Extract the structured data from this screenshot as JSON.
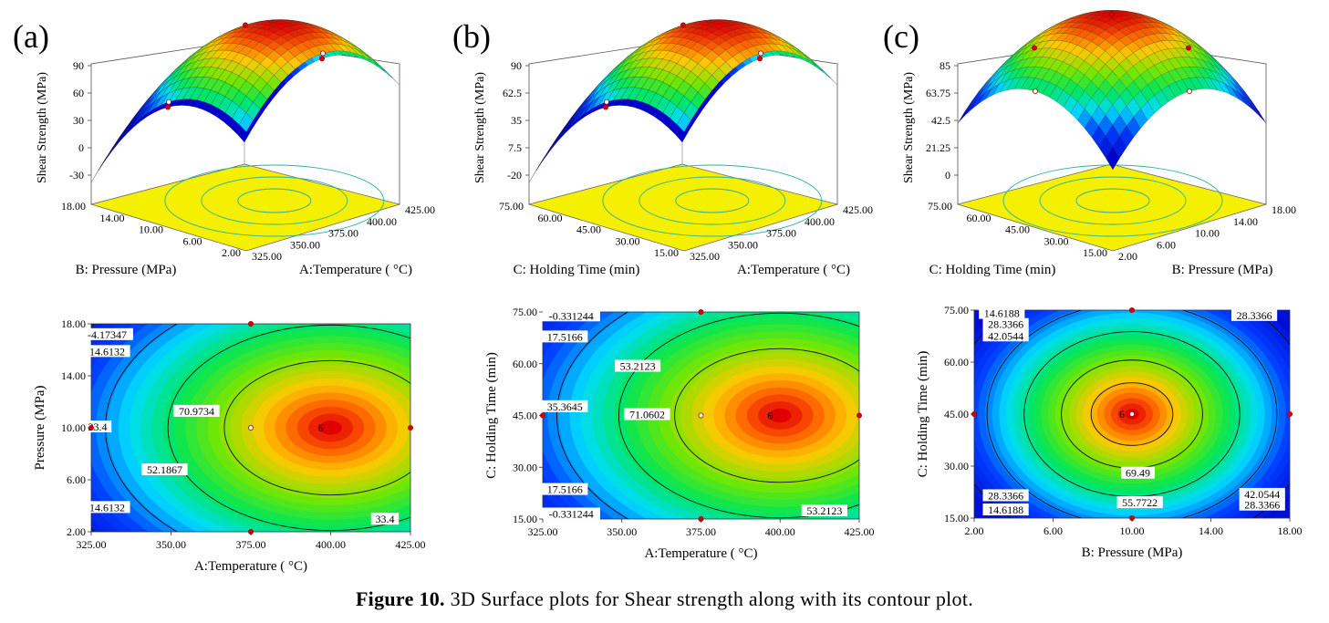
{
  "panels": [
    {
      "label": "(a)"
    },
    {
      "label": "(b)"
    },
    {
      "label": "(c)"
    }
  ],
  "caption": {
    "bold": "Figure 10.",
    "text": " 3D Surface plots for Shear strength along with its contour plot."
  },
  "chart_data": [
    {
      "type": "surface3d",
      "panel": "(a)",
      "zlabel": "Shear Strength (MPa)",
      "zticks": [
        "90",
        "60",
        "30",
        "0",
        "-30"
      ],
      "xlabel": "A:Temperature ( °C)",
      "xticks": [
        "325.00",
        "350.00",
        "375.00",
        "400.00",
        "425.00"
      ],
      "ylabel": "B: Pressure (MPa)",
      "yticks": [
        "2.00",
        "6.00",
        "10.00",
        "14.00",
        "18.00"
      ]
    },
    {
      "type": "surface3d",
      "panel": "(b)",
      "zlabel": "Shear Strength (MPa)",
      "zticks": [
        "90",
        "62.5",
        "35",
        "7.5",
        "-20"
      ],
      "xlabel": "A:Temperature ( °C)",
      "xticks": [
        "325.00",
        "350.00",
        "375.00",
        "400.00",
        "425.00"
      ],
      "ylabel": "C: Holding Time (min)",
      "yticks": [
        "15.00",
        "30.00",
        "45.00",
        "60.00",
        "75.00"
      ]
    },
    {
      "type": "surface3d",
      "panel": "(c)",
      "zlabel": "Shear Strength (MPa)",
      "zticks": [
        "85",
        "63.75",
        "42.5",
        "21.25",
        "0"
      ],
      "xlabel": "B: Pressure (MPa)",
      "xticks": [
        "2.00",
        "6.00",
        "10.00",
        "14.00",
        "18.00"
      ],
      "ylabel": "C: Holding Time (min)",
      "yticks": [
        "15.00",
        "30.00",
        "45.00",
        "60.00",
        "75.00"
      ]
    },
    {
      "type": "contour",
      "panel": "(a)",
      "xlabel": "A:Temperature ( °C)",
      "ylabel": "Pressure (MPa)",
      "xlim": [
        325,
        425
      ],
      "ylim": [
        2,
        18
      ],
      "xticks": [
        "325.00",
        "350.00",
        "375.00",
        "400.00",
        "425.00"
      ],
      "yticks": [
        "2.00",
        "6.00",
        "10.00",
        "14.00",
        "18.00"
      ],
      "center": [
        400,
        10
      ],
      "design_points": [
        [
          325,
          10
        ],
        [
          375,
          18
        ],
        [
          375,
          10
        ],
        [
          425,
          10
        ],
        [
          375,
          2
        ]
      ],
      "center_label": "6",
      "contour_labels": [
        {
          "text": "-4.17347",
          "x": 330,
          "y": 17.1
        },
        {
          "text": "14.6132",
          "x": 330,
          "y": 15.8
        },
        {
          "text": "33.4",
          "x": 327,
          "y": 10.0
        },
        {
          "text": "70.9734",
          "x": 358,
          "y": 11.2
        },
        {
          "text": "52.1867",
          "x": 348,
          "y": 6.7
        },
        {
          "text": "14.6132",
          "x": 330,
          "y": 3.8
        },
        {
          "text": "33.4",
          "x": 417,
          "y": 2.9
        }
      ]
    },
    {
      "type": "contour",
      "panel": "(b)",
      "xlabel": "A:Temperature ( °C)",
      "ylabel": "C: Holding Time (min)",
      "xlim": [
        325,
        425
      ],
      "ylim": [
        15,
        75
      ],
      "xticks": [
        "325.00",
        "350.00",
        "375.00",
        "400.00",
        "425.00"
      ],
      "yticks": [
        "15.00",
        "30.00",
        "45.00",
        "60.00",
        "75.00"
      ],
      "center": [
        400,
        45
      ],
      "design_points": [
        [
          325,
          45
        ],
        [
          375,
          75
        ],
        [
          375,
          45
        ],
        [
          425,
          45
        ],
        [
          375,
          15
        ]
      ],
      "center_label": "6",
      "contour_labels": [
        {
          "text": "-0.331244",
          "x": 334,
          "y": 73.6
        },
        {
          "text": "17.5166",
          "x": 332,
          "y": 67.5
        },
        {
          "text": "53.2123",
          "x": 355,
          "y": 59.0
        },
        {
          "text": "35.3645",
          "x": 332,
          "y": 47.3
        },
        {
          "text": "71.0602",
          "x": 358,
          "y": 45.0
        },
        {
          "text": "17.5166",
          "x": 332,
          "y": 23.3
        },
        {
          "text": "-0.331244",
          "x": 334,
          "y": 16.2
        },
        {
          "text": "53.2123",
          "x": 414,
          "y": 17.1
        }
      ]
    },
    {
      "type": "contour",
      "panel": "(c)",
      "xlabel": "B: Pressure (MPa)",
      "ylabel": "C: Holding Time (min)",
      "xlim": [
        2,
        18
      ],
      "ylim": [
        15,
        75
      ],
      "xticks": [
        "2.00",
        "6.00",
        "10.00",
        "14.00",
        "18.00"
      ],
      "yticks": [
        "15.00",
        "30.00",
        "45.00",
        "60.00",
        "75.00"
      ],
      "center": [
        10,
        45
      ],
      "design_points": [
        [
          2,
          45
        ],
        [
          10,
          75
        ],
        [
          10,
          45
        ],
        [
          18,
          45
        ],
        [
          10,
          15
        ]
      ],
      "center_label": "6",
      "contour_labels": [
        {
          "text": "14.6188",
          "x": 3.4,
          "y": 73.8
        },
        {
          "text": "28.3366",
          "x": 3.6,
          "y": 70.6
        },
        {
          "text": "42.0544",
          "x": 3.6,
          "y": 67.3
        },
        {
          "text": "28.3366",
          "x": 16.2,
          "y": 73.2
        },
        {
          "text": "69.49",
          "x": 10.3,
          "y": 27.7
        },
        {
          "text": "55.7722",
          "x": 10.4,
          "y": 19.2
        },
        {
          "text": "42.0544",
          "x": 16.6,
          "y": 21.6
        },
        {
          "text": "28.3366",
          "x": 3.6,
          "y": 21.2
        },
        {
          "text": "14.6188",
          "x": 3.6,
          "y": 17.1
        },
        {
          "text": "28.3366",
          "x": 16.6,
          "y": 18.5
        }
      ]
    }
  ]
}
